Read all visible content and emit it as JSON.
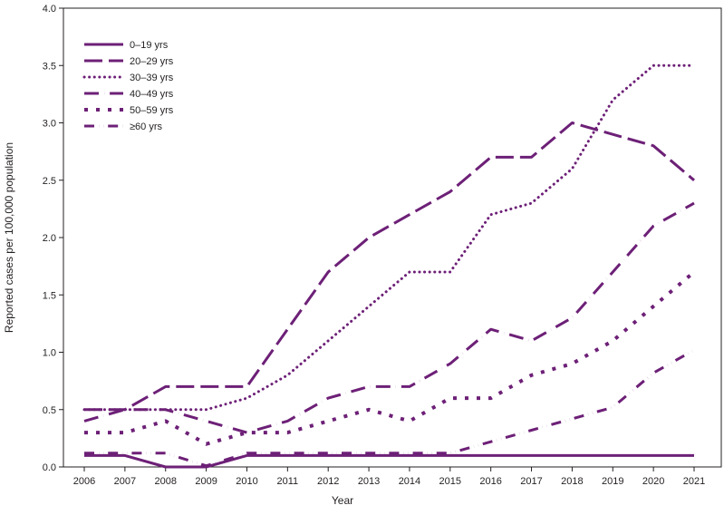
{
  "chart_data": {
    "type": "line",
    "title": "",
    "xlabel": "Year",
    "ylabel": "Reported cases per 100,000 population",
    "x": [
      2006,
      2007,
      2008,
      2009,
      2010,
      2011,
      2012,
      2013,
      2014,
      2015,
      2016,
      2017,
      2018,
      2019,
      2020,
      2021
    ],
    "x_tick_labels": [
      "2006",
      "2007",
      "2008",
      "2009",
      "2010",
      "2011",
      "2012",
      "2013",
      "2014",
      "2015",
      "2016",
      "2017",
      "2018",
      "2019",
      "2020",
      "2021"
    ],
    "ylim": [
      0,
      4.0
    ],
    "y_ticks": [
      0,
      0.5,
      1.0,
      1.5,
      2.0,
      2.5,
      3.0,
      3.5,
      4.0
    ],
    "y_tick_labels": [
      "0.0",
      "0.5",
      "1.0",
      "1.5",
      "2.0",
      "2.5",
      "3.0",
      "3.5",
      "4.0"
    ],
    "grid": false,
    "legend_position": "top-left",
    "line_color": "#6d2077",
    "series": [
      {
        "name": "0–19 yrs",
        "dash": "solid",
        "values": [
          0.1,
          0.1,
          0.0,
          0.0,
          0.1,
          0.1,
          0.1,
          0.1,
          0.1,
          0.1,
          0.1,
          0.1,
          0.1,
          0.1,
          0.1,
          0.1
        ]
      },
      {
        "name": "20–29 yrs",
        "dash": "long-dash",
        "values": [
          0.5,
          0.5,
          0.7,
          0.7,
          0.7,
          1.2,
          1.7,
          2.0,
          2.2,
          2.4,
          2.7,
          2.7,
          3.0,
          2.9,
          2.8,
          2.5
        ]
      },
      {
        "name": "30–39 yrs",
        "dash": "dotted",
        "values": [
          0.5,
          0.5,
          0.5,
          0.5,
          0.6,
          0.8,
          1.1,
          1.4,
          1.7,
          1.7,
          2.2,
          2.3,
          2.6,
          3.2,
          3.5,
          3.5
        ]
      },
      {
        "name": "40–49 yrs",
        "dash": "dash-dot",
        "values": [
          0.4,
          0.5,
          0.5,
          0.4,
          0.3,
          0.4,
          0.6,
          0.7,
          0.7,
          0.9,
          1.2,
          1.1,
          1.3,
          1.7,
          2.1,
          2.3
        ]
      },
      {
        "name": "50–59 yrs",
        "dash": "short-dash",
        "values": [
          0.3,
          0.3,
          0.4,
          0.2,
          0.3,
          0.3,
          0.4,
          0.5,
          0.4,
          0.6,
          0.6,
          0.8,
          0.9,
          1.1,
          1.4,
          1.7
        ]
      },
      {
        "name": "≥60 yrs",
        "dash": "dash-dot-dot",
        "values": [
          0.12,
          0.12,
          0.12,
          0.01,
          0.12,
          0.12,
          0.12,
          0.12,
          0.12,
          0.12,
          0.22,
          0.32,
          0.42,
          0.52,
          0.82,
          1.02
        ]
      }
    ]
  }
}
